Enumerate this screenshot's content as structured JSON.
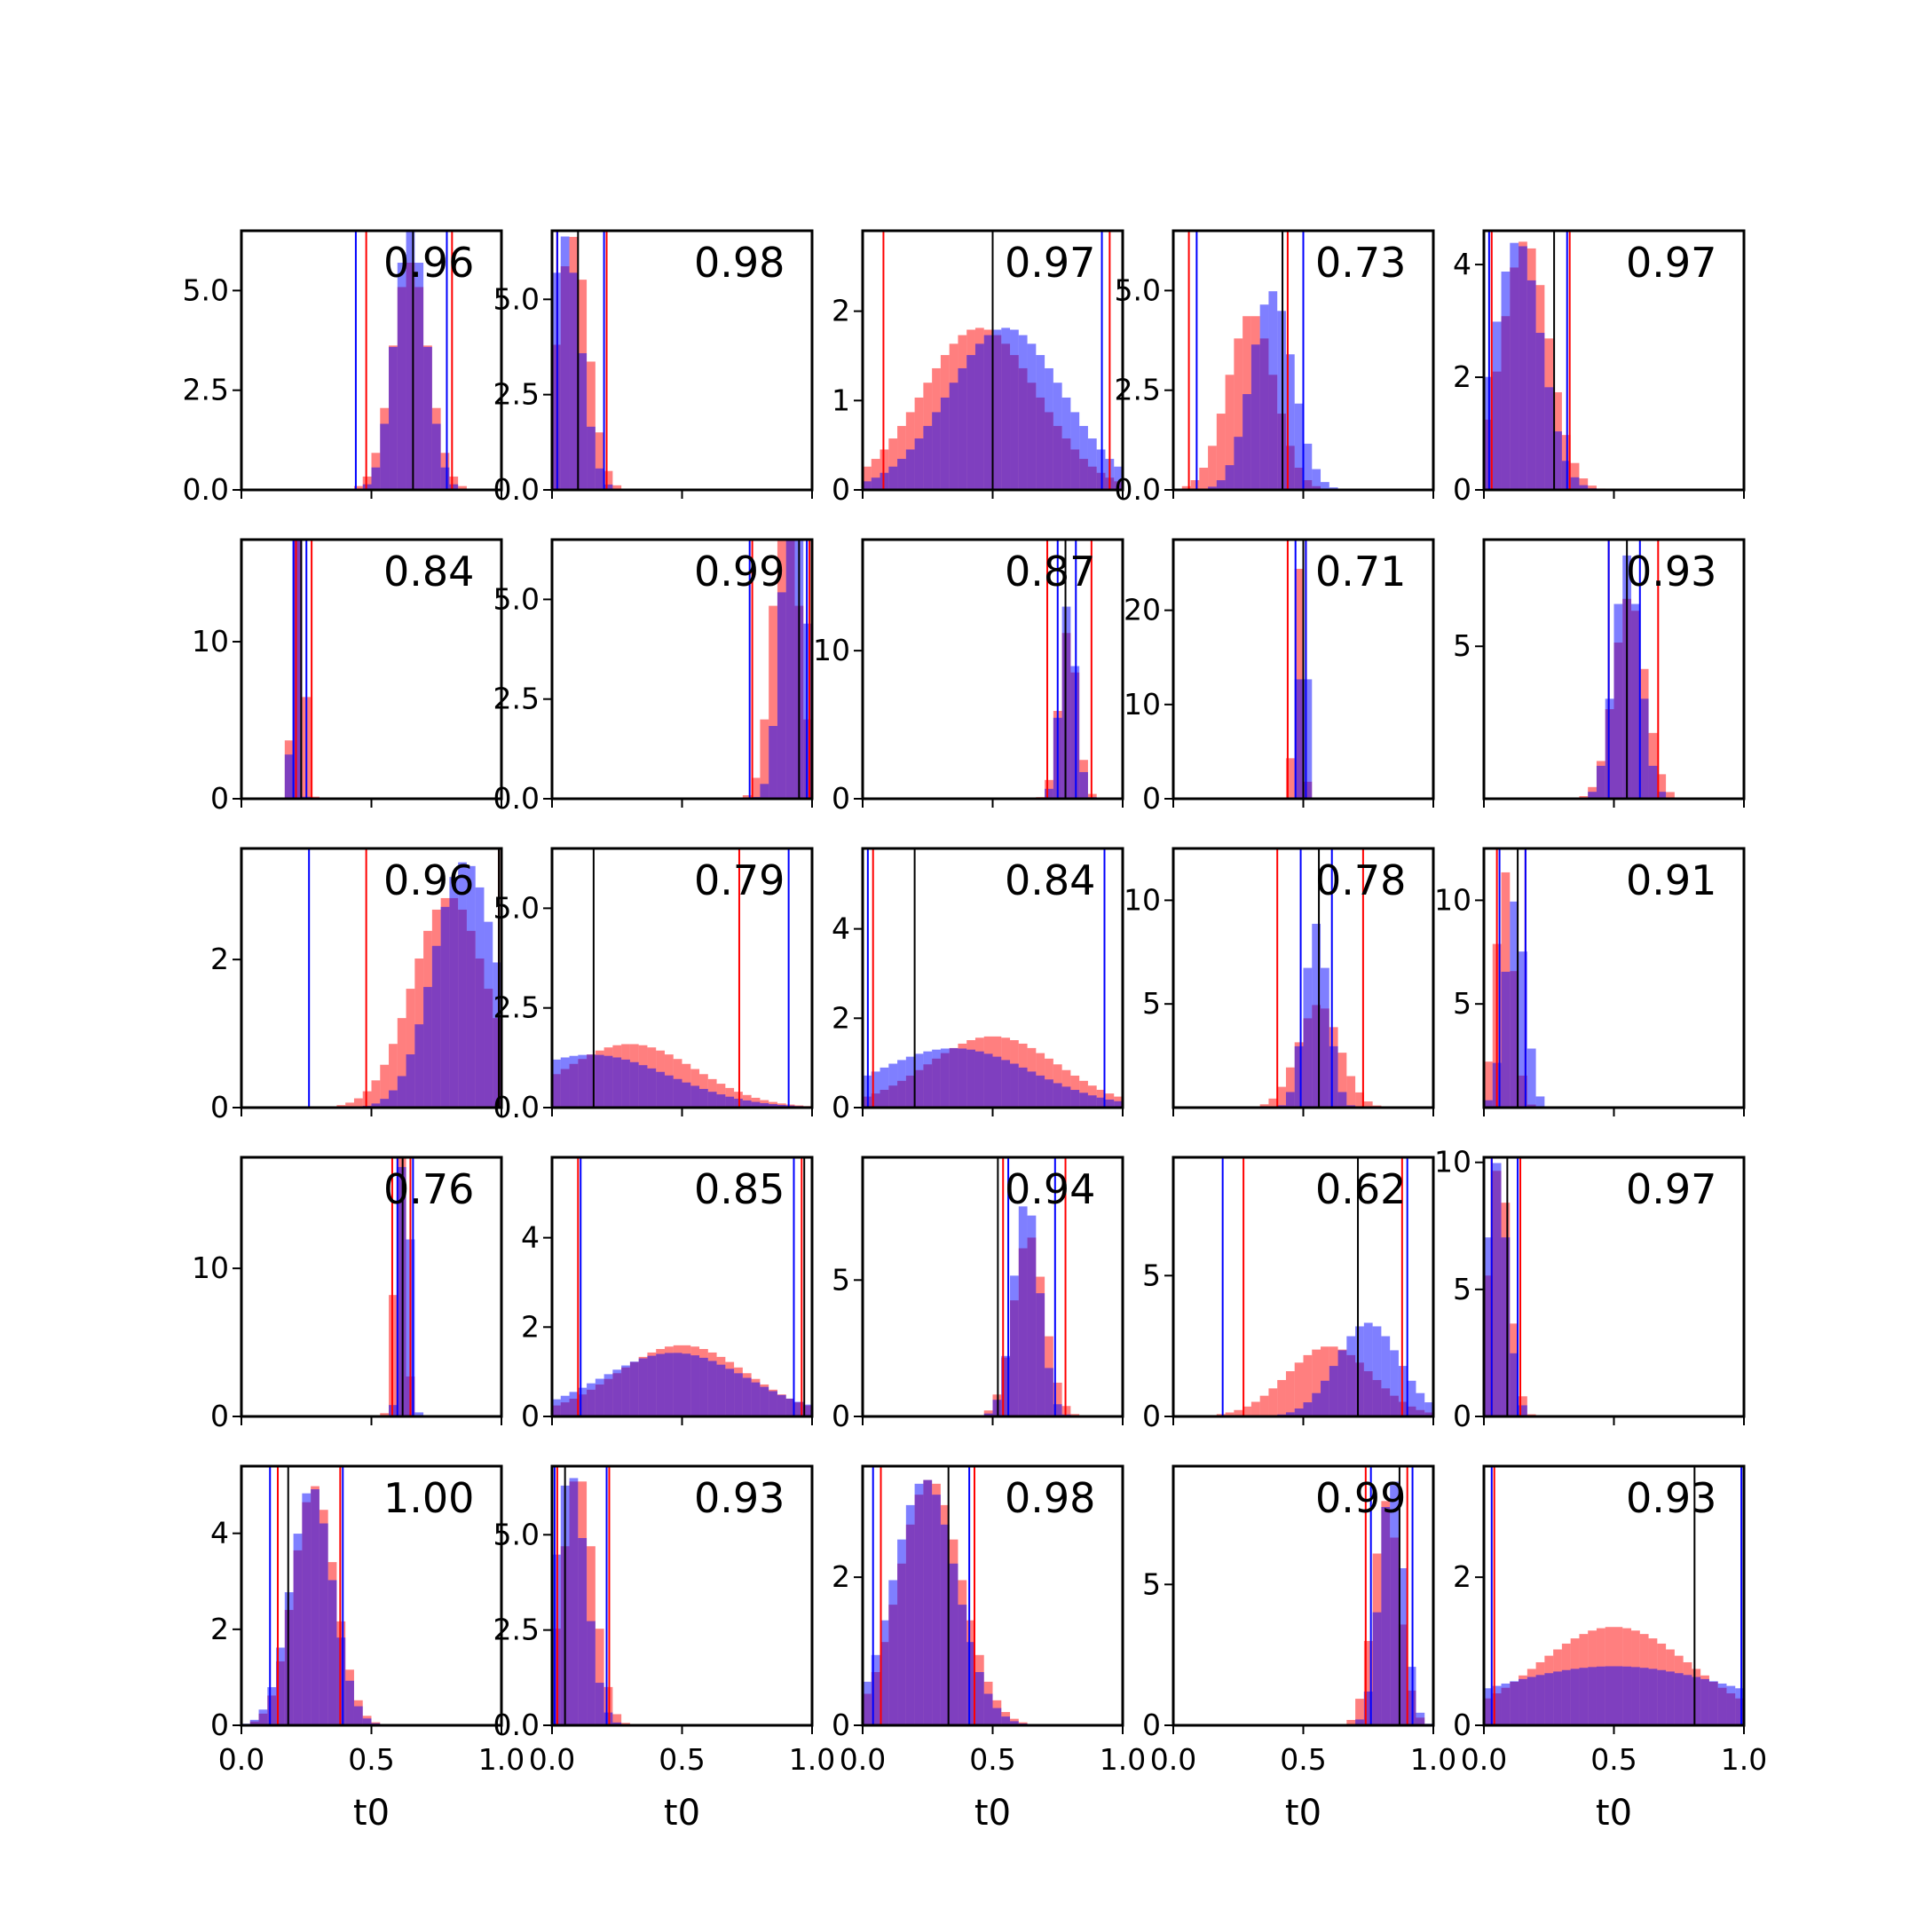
{
  "chart_data": {
    "type": "histogram-grid",
    "rows": 5,
    "cols": 5,
    "xlabel": "t0",
    "xlim": [
      0,
      1
    ],
    "xticks": [
      0.0,
      0.5,
      1.0
    ],
    "xtick_labels": [
      "0.0",
      "0.5",
      "1.0"
    ],
    "colors": {
      "red": "#ff0000",
      "blue": "#0000ff",
      "black": "#000000"
    },
    "bins": 30,
    "panels": [
      {
        "score": "0.96",
        "ylim": [
          0,
          6.5
        ],
        "yticks": [
          0,
          2.5,
          5.0
        ],
        "ytick_labels": [
          "0.0",
          "2.5",
          "5.0"
        ],
        "red": {
          "mu": 0.65,
          "sd": 0.07
        },
        "blue": {
          "mu": 0.65,
          "sd": 0.06
        },
        "vlines": {
          "blue": [
            0.44,
            0.79
          ],
          "red": [
            0.48,
            0.81
          ],
          "black": [
            0.66
          ]
        }
      },
      {
        "score": "0.98",
        "ylim": [
          0,
          6.8
        ],
        "yticks": [
          0,
          2.5,
          5.0
        ],
        "ytick_labels": [
          "0.0",
          "2.5",
          "5.0"
        ],
        "red": {
          "mu": 0.08,
          "sd": 0.06
        },
        "blue": {
          "mu": 0.05,
          "sd": 0.06
        },
        "vlines": {
          "blue": [
            0.02,
            0.2
          ],
          "red": [
            0.02,
            0.21
          ],
          "black": [
            0.1
          ]
        }
      },
      {
        "score": "0.97",
        "ylim": [
          0,
          2.9
        ],
        "yticks": [
          0,
          1,
          2
        ],
        "ytick_labels": [
          "0",
          "1",
          "2"
        ],
        "red": {
          "mu": 0.45,
          "sd": 0.22
        },
        "blue": {
          "mu": 0.55,
          "sd": 0.22
        },
        "vlines": {
          "blue": [
            0.92
          ],
          "red": [
            0.08,
            0.95
          ],
          "black": [
            0.5
          ]
        }
      },
      {
        "score": "0.73",
        "ylim": [
          0,
          6.5
        ],
        "yticks": [
          0,
          2.5,
          5.0
        ],
        "ytick_labels": [
          "0.0",
          "2.5",
          "5.0"
        ],
        "red": {
          "mu": 0.3,
          "sd": 0.09
        },
        "blue": {
          "mu": 0.38,
          "sd": 0.08
        },
        "vlines": {
          "blue": [
            0.09,
            0.5
          ],
          "red": [
            0.06,
            0.44
          ],
          "black": [
            0.42
          ]
        }
      },
      {
        "score": "0.97",
        "ylim": [
          0,
          4.6
        ],
        "yticks": [
          0,
          2,
          4
        ],
        "ytick_labels": [
          "0",
          "2",
          "4"
        ],
        "red": {
          "mu": 0.16,
          "sd": 0.09
        },
        "blue": {
          "mu": 0.13,
          "sd": 0.09
        },
        "vlines": {
          "blue": [
            0.02,
            0.32
          ],
          "red": [
            0.03,
            0.33
          ],
          "black": [
            0.27
          ]
        }
      },
      {
        "score": "0.84",
        "ylim": [
          0,
          16.5
        ],
        "yticks": [
          0,
          10
        ],
        "ytick_labels": [
          "0",
          "10"
        ],
        "red": {
          "mu": 0.22,
          "sd": 0.02
        },
        "blue": {
          "mu": 0.21,
          "sd": 0.012
        },
        "vlines": {
          "blue": [
            0.2,
            0.25
          ],
          "red": [
            0.21,
            0.27
          ],
          "black": [
            0.23
          ]
        }
      },
      {
        "score": "0.99",
        "ylim": [
          0,
          6.5
        ],
        "yticks": [
          0,
          2.5,
          5.0
        ],
        "ytick_labels": [
          "0.0",
          "2.5",
          "5.0"
        ],
        "red": {
          "mu": 0.9,
          "sd": 0.05
        },
        "blue": {
          "mu": 0.93,
          "sd": 0.045
        },
        "vlines": {
          "blue": [
            0.76,
            0.98
          ],
          "red": [
            0.77,
            0.99
          ],
          "black": [
            0.95
          ]
        }
      },
      {
        "score": "0.87",
        "ylim": [
          0,
          17.5
        ],
        "yticks": [
          0,
          10
        ],
        "ytick_labels": [
          "0",
          "10"
        ],
        "red": {
          "mu": 0.79,
          "sd": 0.035
        },
        "blue": {
          "mu": 0.79,
          "sd": 0.03
        },
        "vlines": {
          "blue": [
            0.75,
            0.82
          ],
          "red": [
            0.71,
            0.88
          ],
          "black": [
            0.78
          ]
        }
      },
      {
        "score": "0.71",
        "ylim": [
          0,
          27.5
        ],
        "yticks": [
          0,
          10,
          20
        ],
        "ytick_labels": [
          "0",
          "10",
          "20"
        ],
        "red": {
          "mu": 0.48,
          "sd": 0.016
        },
        "blue": {
          "mu": 0.5,
          "sd": 0.012
        },
        "vlines": {
          "blue": [
            0.47,
            0.51
          ],
          "red": [
            0.44,
            0.51
          ],
          "black": [
            0.5
          ]
        }
      },
      {
        "score": "0.93",
        "ylim": [
          0,
          8.5
        ],
        "yticks": [
          5
        ],
        "ytick_labels": [
          "5"
        ],
        "red": {
          "mu": 0.56,
          "sd": 0.06
        },
        "blue": {
          "mu": 0.55,
          "sd": 0.05
        },
        "vlines": {
          "blue": [
            0.48,
            0.6
          ],
          "red": [
            0.48,
            0.67
          ],
          "black": [
            0.55
          ]
        }
      },
      {
        "score": "0.96",
        "ylim": [
          0,
          3.5
        ],
        "yticks": [
          0,
          2
        ],
        "ytick_labels": [
          "0",
          "2"
        ],
        "red": {
          "mu": 0.8,
          "sd": 0.14
        },
        "blue": {
          "mu": 0.86,
          "sd": 0.12
        },
        "vlines": {
          "blue": [
            0.26,
            1.0
          ],
          "red": [
            0.48,
            0.99
          ],
          "black": [
            0.99
          ]
        }
      },
      {
        "score": "0.79",
        "ylim": [
          0,
          6.5
        ],
        "yticks": [
          0,
          2.5,
          5.0
        ],
        "ytick_labels": [
          "0.0",
          "2.5",
          "5.0"
        ],
        "red": {
          "mu": 0.3,
          "sd": 0.25
        },
        "blue": {
          "mu": 0.15,
          "sd": 0.3
        },
        "vlines": {
          "blue": [
            0.91
          ],
          "red": [
            0.72
          ],
          "black": [
            0.16
          ]
        }
      },
      {
        "score": "0.84",
        "ylim": [
          0,
          5.8
        ],
        "yticks": [
          0,
          2,
          4
        ],
        "ytick_labels": [
          "0",
          "2",
          "4"
        ],
        "red": {
          "mu": 0.5,
          "sd": 0.25
        },
        "blue": {
          "mu": 0.35,
          "sd": 0.3
        },
        "vlines": {
          "blue": [
            0.02,
            0.93
          ],
          "red": [
            0.04,
            0.93
          ],
          "black": [
            0.2
          ]
        }
      },
      {
        "score": "0.78",
        "ylim": [
          0,
          12.5
        ],
        "yticks": [
          5,
          10
        ],
        "ytick_labels": [
          "5",
          "10"
        ],
        "red": {
          "mu": 0.56,
          "sd": 0.08
        },
        "blue": {
          "mu": 0.55,
          "sd": 0.045
        },
        "vlines": {
          "blue": [
            0.49,
            0.61
          ],
          "red": [
            0.4,
            0.73
          ],
          "black": [
            0.56
          ]
        }
      },
      {
        "score": "0.91",
        "ylim": [
          0,
          12.5
        ],
        "yticks": [
          5,
          10
        ],
        "ytick_labels": [
          "5",
          "10"
        ],
        "red": {
          "mu": 0.08,
          "sd": 0.035
        },
        "blue": {
          "mu": 0.12,
          "sd": 0.04
        },
        "vlines": {
          "blue": [
            0.06,
            0.16
          ],
          "red": [
            0.05,
            0.16
          ],
          "black": [
            0.13
          ]
        }
      },
      {
        "score": "0.76",
        "ylim": [
          0,
          17.5
        ],
        "yticks": [
          0,
          10
        ],
        "ytick_labels": [
          "0",
          "10"
        ],
        "red": {
          "mu": 0.61,
          "sd": 0.02
        },
        "blue": {
          "mu": 0.63,
          "sd": 0.018
        },
        "vlines": {
          "blue": [
            0.6,
            0.66
          ],
          "red": [
            0.58,
            0.65
          ],
          "black": [
            0.62
          ]
        }
      },
      {
        "score": "0.85",
        "ylim": [
          0,
          5.8
        ],
        "yticks": [
          0,
          2,
          4
        ],
        "ytick_labels": [
          "0",
          "2",
          "4"
        ],
        "red": {
          "mu": 0.5,
          "sd": 0.25
        },
        "blue": {
          "mu": 0.47,
          "sd": 0.28
        },
        "vlines": {
          "blue": [
            0.11,
            0.93
          ],
          "red": [
            0.1,
            0.96
          ],
          "black": [
            0.97
          ]
        }
      },
      {
        "score": "0.94",
        "ylim": [
          0,
          9.5
        ],
        "yticks": [
          0,
          5
        ],
        "ytick_labels": [
          "0",
          "5"
        ],
        "red": {
          "mu": 0.64,
          "sd": 0.06
        },
        "blue": {
          "mu": 0.63,
          "sd": 0.05
        },
        "vlines": {
          "blue": [
            0.56,
            0.74
          ],
          "red": [
            0.54,
            0.78
          ],
          "black": [
            0.52
          ]
        }
      },
      {
        "score": "0.62",
        "ylim": [
          0,
          9.2
        ],
        "yticks": [
          0,
          5
        ],
        "ytick_labels": [
          "0",
          "5"
        ],
        "red": {
          "mu": 0.6,
          "sd": 0.16
        },
        "blue": {
          "mu": 0.75,
          "sd": 0.12
        },
        "vlines": {
          "blue": [
            0.19,
            0.9
          ],
          "red": [
            0.27,
            0.88
          ],
          "black": [
            0.71
          ]
        }
      },
      {
        "score": "0.97",
        "ylim": [
          0,
          10.2
        ],
        "yticks": [
          0,
          5,
          10
        ],
        "ytick_labels": [
          "0",
          "5",
          "10"
        ],
        "red": {
          "mu": 0.06,
          "sd": 0.04
        },
        "blue": {
          "mu": 0.05,
          "sd": 0.04
        },
        "vlines": {
          "blue": [
            0.03,
            0.13
          ],
          "red": [
            0.03,
            0.14
          ],
          "black": [
            0.09
          ]
        }
      },
      {
        "score": "1.00",
        "ylim": [
          0,
          5.4
        ],
        "yticks": [
          0,
          2,
          4
        ],
        "ytick_labels": [
          "0",
          "2",
          "4"
        ],
        "red": {
          "mu": 0.28,
          "sd": 0.08
        },
        "blue": {
          "mu": 0.27,
          "sd": 0.08
        },
        "vlines": {
          "blue": [
            0.11,
            0.39
          ],
          "red": [
            0.14,
            0.38
          ],
          "black": [
            0.18
          ]
        }
      },
      {
        "score": "0.93",
        "ylim": [
          0,
          6.8
        ],
        "yticks": [
          0,
          2.5,
          5.0
        ],
        "ytick_labels": [
          "0.0",
          "2.5",
          "5.0"
        ],
        "red": {
          "mu": 0.1,
          "sd": 0.06
        },
        "blue": {
          "mu": 0.07,
          "sd": 0.06
        },
        "vlines": {
          "blue": [
            0.01,
            0.21
          ],
          "red": [
            0.02,
            0.22
          ],
          "black": [
            0.05
          ]
        }
      },
      {
        "score": "0.98",
        "ylim": [
          0,
          3.5
        ],
        "yticks": [
          0,
          2
        ],
        "ytick_labels": [
          "0",
          "2"
        ],
        "red": {
          "mu": 0.26,
          "sd": 0.12
        },
        "blue": {
          "mu": 0.24,
          "sd": 0.12
        },
        "vlines": {
          "blue": [
            0.04,
            0.41
          ],
          "red": [
            0.07,
            0.43
          ],
          "black": [
            0.33
          ]
        }
      },
      {
        "score": "0.99",
        "ylim": [
          0,
          9.2
        ],
        "yticks": [
          0,
          5
        ],
        "ytick_labels": [
          "0",
          "5"
        ],
        "red": {
          "mu": 0.82,
          "sd": 0.05
        },
        "blue": {
          "mu": 0.84,
          "sd": 0.045
        },
        "vlines": {
          "blue": [
            0.76,
            0.92
          ],
          "red": [
            0.74,
            0.9
          ],
          "black": [
            0.87
          ]
        }
      },
      {
        "score": "0.93",
        "ylim": [
          0,
          3.5
        ],
        "yticks": [
          0,
          2
        ],
        "ytick_labels": [
          "0",
          "2"
        ],
        "red": {
          "mu": 0.5,
          "sd": 0.3
        },
        "blue": {
          "mu": 0.5,
          "sd": 0.5
        },
        "vlines": {
          "blue": [
            0.03,
            0.99
          ],
          "red": [
            0.04,
            1.0
          ],
          "black": [
            0.81
          ]
        }
      }
    ]
  }
}
